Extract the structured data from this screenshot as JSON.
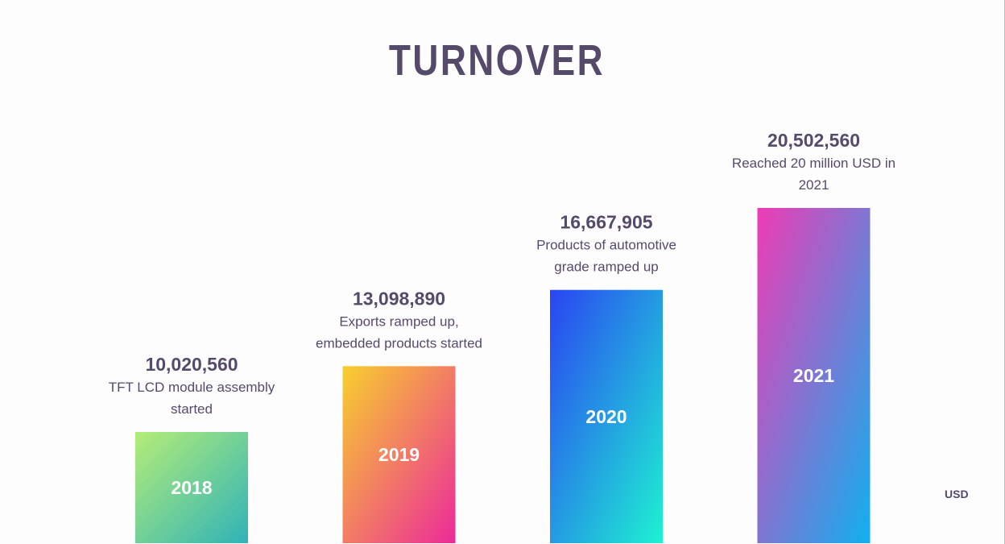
{
  "chart_data": {
    "type": "bar",
    "title": "TURNOVER",
    "unit_label": "USD",
    "categories": [
      "2018",
      "2019",
      "2020",
      "2021"
    ],
    "values": [
      10020560,
      13098890,
      16667905,
      20502560
    ],
    "value_labels": [
      "10,020,560",
      "13,098,890",
      "16,667,905",
      "20,502,560"
    ],
    "annotations": [
      [
        "TFT LCD module assembly",
        "started"
      ],
      [
        "Exports ramped up,",
        "embedded products started"
      ],
      [
        "Products of automotive",
        "grade ramped up"
      ],
      [
        "Reached 20 million USD in",
        "2021"
      ]
    ],
    "gradients": [
      [
        "#b5ec78",
        "#2fb3b8"
      ],
      [
        "#f8cf2e",
        "#ec2a9a"
      ],
      [
        "#2a44f2",
        "#1ef2d2"
      ],
      [
        "#ef3bb5",
        "#0fb0ef"
      ]
    ],
    "text_color": "#564a6b",
    "xlabel": "",
    "ylabel": "",
    "grid": false
  }
}
